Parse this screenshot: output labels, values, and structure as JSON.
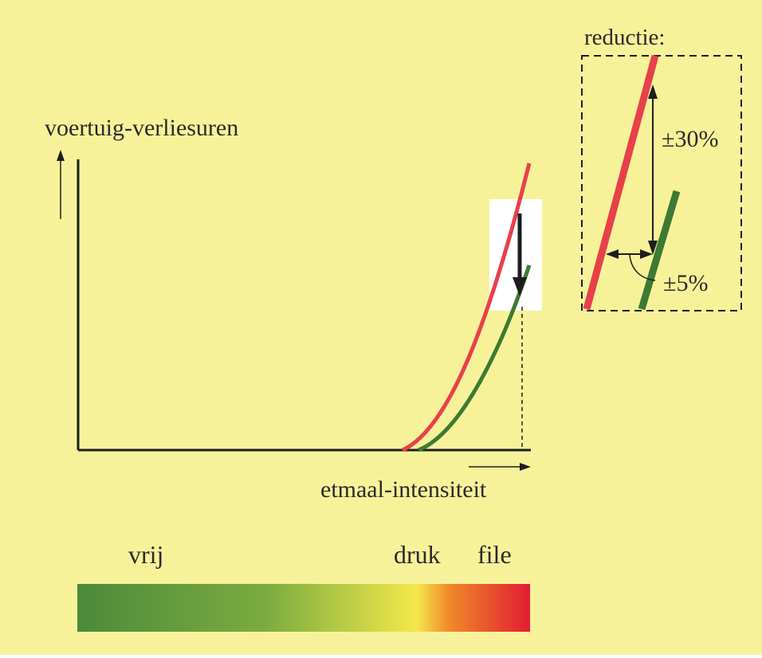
{
  "colors": {
    "background": "#f7f29a",
    "axis": "#1e1e1e",
    "before_curve": "#e8404a",
    "after_curve": "#3d7a32",
    "highlight_box": "#ffffff"
  },
  "labels": {
    "y_axis": "voertuig-verliesuren",
    "x_axis": "etmaal-intensiteit",
    "inset_title": "reductie:",
    "reduction_vertical": "±30%",
    "reduction_horizontal": "±5%"
  },
  "scale_bar": {
    "labels": {
      "free": "vrij",
      "busy": "druk",
      "jam": "file"
    },
    "gradient_colors": [
      "#4c8a3a",
      "#7cac40",
      "#f4e84a",
      "#f08a2a",
      "#e21c32"
    ]
  }
}
